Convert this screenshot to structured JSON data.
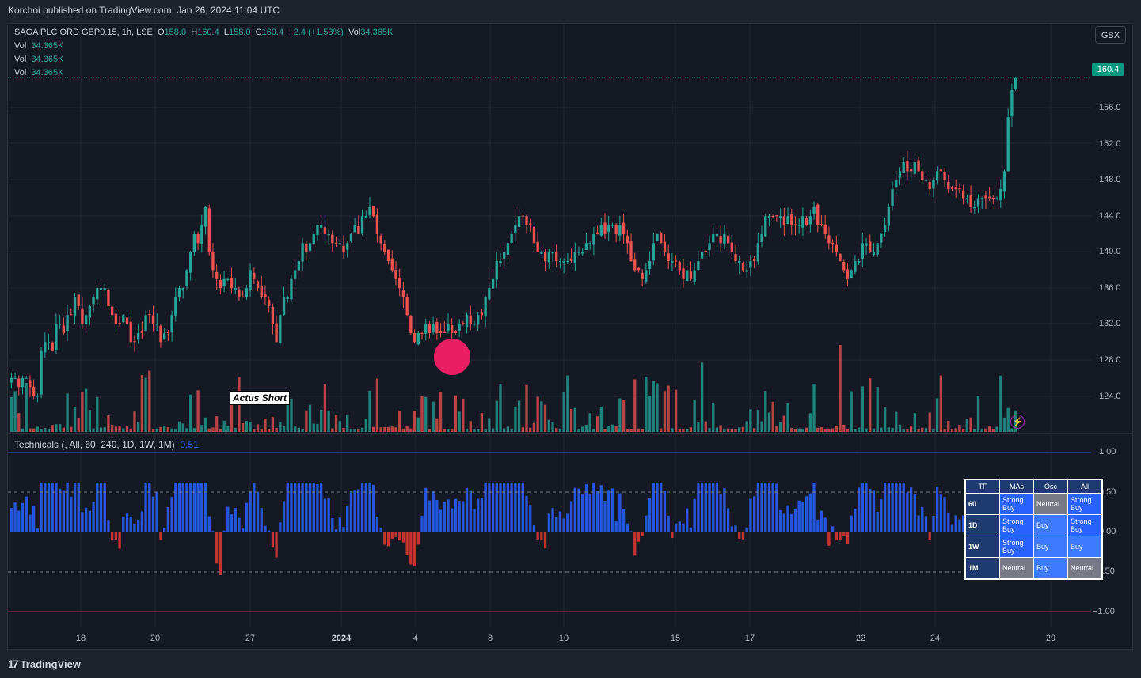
{
  "header": {
    "published": "Korchoi published on TradingView.com, Jan 26, 2024 11:04 UTC"
  },
  "symbol": {
    "name": "SAGA PLC ORD GBP0.15, 1h, LSE",
    "o_label": "O",
    "o": "158.0",
    "h_label": "H",
    "h": "160.4",
    "l_label": "L",
    "l": "158.0",
    "c_label": "C",
    "c": "160.4",
    "change": "+2.4 (+1.53%)",
    "vol_label": "Vol",
    "vol": "34.365K"
  },
  "volume_legends": [
    {
      "label": "Vol",
      "value": "34.365K"
    },
    {
      "label": "Vol",
      "value": "34.365K"
    },
    {
      "label": "Vol",
      "value": "34.365K"
    }
  ],
  "currency": "GBX",
  "last_price": "160.4",
  "price_axis": [
    "156.0",
    "152.0",
    "148.0",
    "144.0",
    "140.0",
    "136.0",
    "132.0",
    "128.0",
    "124.0"
  ],
  "time_axis": [
    "18",
    "20",
    "27",
    "2024",
    "4",
    "8",
    "10",
    "15",
    "17",
    "22",
    "24",
    "29"
  ],
  "annotation": "Actus Short",
  "technicals": {
    "title": "Technicals (, All, 60, 240, 1D, 1W, 1M)",
    "value": "0.51",
    "axis": [
      "1.00",
      "0.50",
      "0.00",
      "−0.50",
      "−1.00"
    ],
    "table": {
      "headers": [
        "TF",
        "MAs",
        "Osc",
        "All"
      ],
      "rows": [
        {
          "tf": "60",
          "mas": "Strong Buy",
          "osc": "Neutral",
          "all": "Strong Buy"
        },
        {
          "tf": "1D",
          "mas": "Strong Buy",
          "osc": "Buy",
          "all": "Strong Buy"
        },
        {
          "tf": "1W",
          "mas": "Strong Buy",
          "osc": "Buy",
          "all": "Buy"
        },
        {
          "tf": "1M",
          "mas": "Neutral",
          "osc": "Buy",
          "all": "Neutral"
        }
      ]
    }
  },
  "colors": {
    "up": "#26a69a",
    "down": "#ef5350",
    "osc_pos": "#2962ff",
    "osc_neg": "#e53935",
    "marker": "#e91e63"
  },
  "chart_data": {
    "type": "candlestick",
    "ylim": [
      121,
      162
    ],
    "close_series": [
      127,
      127,
      126,
      127,
      127,
      126,
      125,
      125,
      130,
      131,
      131,
      130,
      133,
      133,
      132,
      134,
      134,
      136,
      135,
      133,
      134,
      135,
      136,
      137,
      137,
      137,
      135,
      134,
      133,
      133,
      134,
      133,
      131,
      131,
      132,
      132,
      134,
      134,
      133,
      133,
      131,
      132,
      132,
      134,
      136,
      137,
      137,
      139,
      141,
      143,
      142,
      144,
      146,
      141,
      139,
      138,
      137,
      138,
      138,
      137,
      137,
      136,
      136,
      137,
      139,
      138,
      137,
      136,
      136,
      135,
      133,
      131,
      134,
      136,
      136,
      138,
      139,
      140,
      142,
      141,
      142,
      143,
      144,
      144,
      143,
      143,
      142,
      142,
      142,
      141,
      142,
      143,
      144,
      143,
      145,
      145,
      146,
      145,
      143,
      142,
      141,
      140,
      139,
      138,
      137,
      136,
      134,
      132,
      131,
      132,
      132,
      133,
      132,
      133,
      132,
      132,
      132,
      133,
      132,
      132,
      133,
      133,
      134,
      133,
      133,
      134,
      134,
      136,
      137,
      138,
      140,
      140,
      141,
      142,
      143,
      144,
      145,
      145,
      144,
      144,
      142,
      141,
      141,
      140,
      141,
      141,
      140,
      140,
      140,
      140,
      140,
      141,
      141,
      141,
      142,
      142,
      143,
      143,
      144,
      143,
      144,
      144,
      143,
      144,
      143,
      142,
      140,
      139,
      139,
      138,
      139,
      140,
      142,
      143,
      142,
      141,
      140,
      140,
      140,
      139,
      138,
      139,
      138,
      139,
      140,
      141,
      141,
      142,
      143,
      143,
      142,
      143,
      142,
      141,
      140,
      140,
      139,
      139,
      140,
      140,
      142,
      143,
      145,
      145,
      145,
      145,
      145,
      144,
      145,
      144,
      144,
      144,
      145,
      144,
      145,
      146,
      144,
      144,
      143,
      142,
      142,
      141,
      140,
      139,
      138,
      139,
      140,
      140,
      142,
      142,
      141,
      141,
      142,
      143,
      144,
      146,
      148,
      149,
      150,
      151,
      150,
      150,
      151,
      150,
      149,
      149,
      148,
      149,
      150,
      150,
      149,
      148,
      148,
      148,
      148,
      147,
      147,
      146,
      146,
      147,
      147,
      147,
      147,
      147,
      147,
      148,
      150,
      156,
      159,
      160.4
    ]
  }
}
